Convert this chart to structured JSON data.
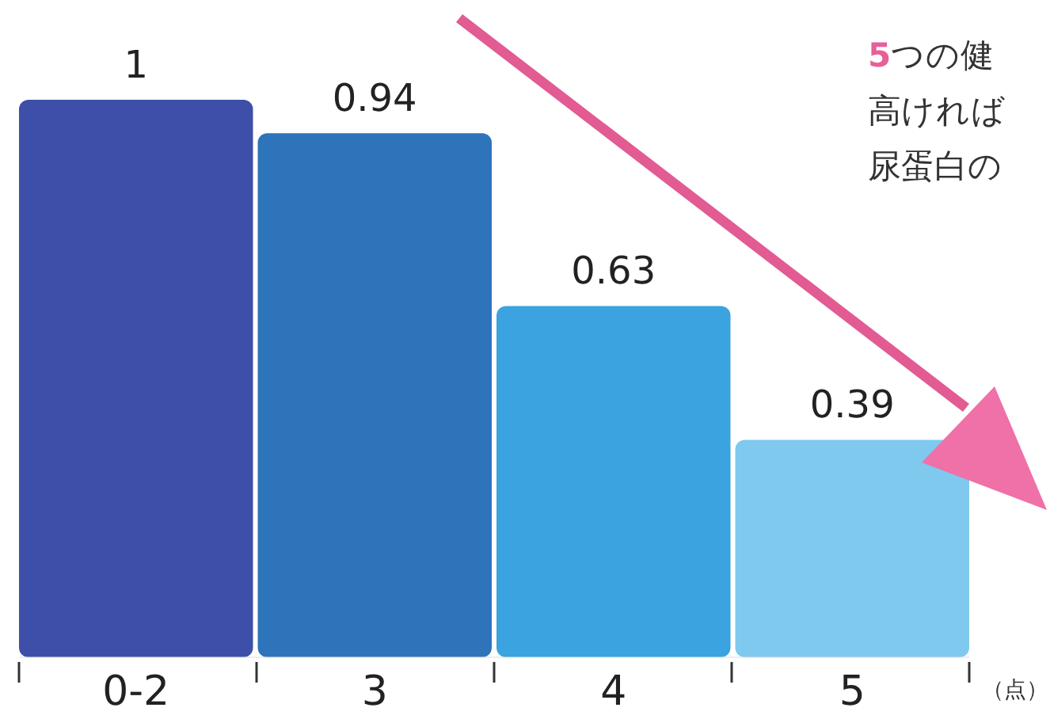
{
  "chart_data": {
    "type": "bar",
    "categories": [
      "0-2",
      "3",
      "4",
      "5"
    ],
    "values": [
      1,
      0.94,
      0.63,
      0.39
    ],
    "colors": [
      "#3d4fa8",
      "#2e74bb",
      "#3aa3e0",
      "#7fc9ef"
    ],
    "data_labels": true,
    "xlabel": "（点）",
    "annotations": [
      "5つの健",
      "高ければ",
      "尿蛋白の"
    ]
  }
}
